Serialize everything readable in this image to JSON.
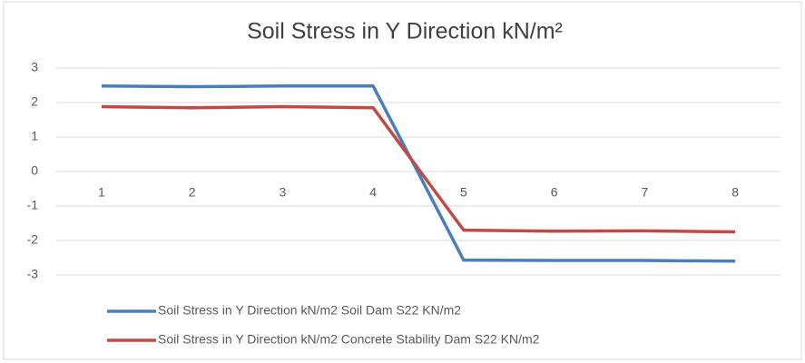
{
  "chart_data": {
    "type": "line",
    "title": "Soil Stress in Y Direction kN/m²",
    "categories": [
      "1",
      "2",
      "3",
      "4",
      "5",
      "6",
      "7",
      "8"
    ],
    "series": [
      {
        "name": "Soil Stress in Y Direction kN/m2 Soil Dam S22 KN/m2",
        "color": "#4a7ebb",
        "values": [
          2.48,
          2.46,
          2.48,
          2.48,
          -2.57,
          -2.58,
          -2.58,
          -2.6
        ]
      },
      {
        "name": "Soil Stress in Y Direction kN/m2 Concrete Stability Dam S22 KN/m2",
        "color": "#be4b48",
        "values": [
          1.88,
          1.85,
          1.88,
          1.85,
          -1.7,
          -1.73,
          -1.72,
          -1.75
        ]
      }
    ],
    "ylim": [
      -3,
      3
    ],
    "yticks": [
      -3,
      -2,
      -1,
      0,
      1,
      2,
      3
    ],
    "grid": true,
    "legend": "bottom"
  }
}
